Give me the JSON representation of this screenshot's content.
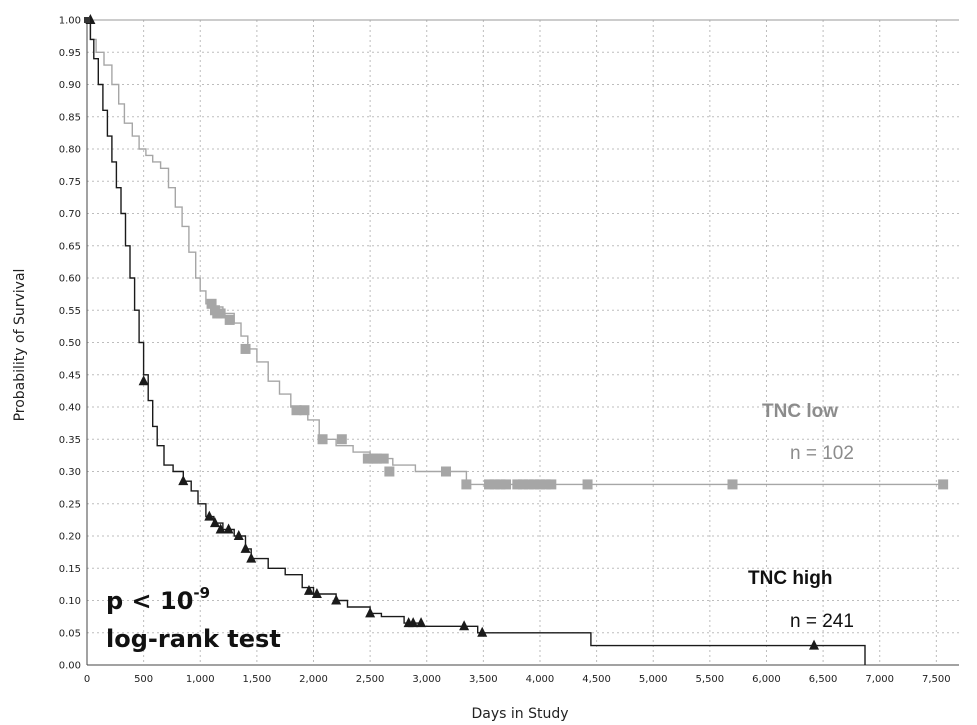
{
  "chart_data": {
    "type": "line",
    "subtype": "kaplan-meier step curve",
    "title": "",
    "xlabel": "Days in Study",
    "ylabel": "Probability of Survival",
    "xlim": [
      0,
      7700
    ],
    "ylim": [
      0,
      1.0
    ],
    "x_ticks": [
      "0",
      "500",
      "1,000",
      "1,500",
      "2,000",
      "2,500",
      "3,000",
      "3,500",
      "4,000",
      "4,500",
      "5,000",
      "5,500",
      "6,000",
      "6,500",
      "7,000",
      "7,500"
    ],
    "y_ticks": [
      "0.00",
      "0.05",
      "0.10",
      "0.15",
      "0.20",
      "0.25",
      "0.30",
      "0.35",
      "0.40",
      "0.45",
      "0.50",
      "0.55",
      "0.60",
      "0.65",
      "0.70",
      "0.75",
      "0.80",
      "0.85",
      "0.90",
      "0.95",
      "1.00"
    ],
    "grid": true,
    "series": [
      {
        "name": "TNC low",
        "color": "#a6a6a6",
        "marker": "square",
        "step_points": [
          [
            0,
            1.0
          ],
          [
            30,
            0.97
          ],
          [
            80,
            0.95
          ],
          [
            150,
            0.93
          ],
          [
            220,
            0.9
          ],
          [
            280,
            0.87
          ],
          [
            330,
            0.84
          ],
          [
            400,
            0.82
          ],
          [
            460,
            0.8
          ],
          [
            520,
            0.79
          ],
          [
            580,
            0.78
          ],
          [
            650,
            0.77
          ],
          [
            720,
            0.74
          ],
          [
            780,
            0.71
          ],
          [
            840,
            0.68
          ],
          [
            900,
            0.64
          ],
          [
            960,
            0.6
          ],
          [
            1000,
            0.58
          ],
          [
            1050,
            0.56
          ],
          [
            1100,
            0.555
          ],
          [
            1200,
            0.545
          ],
          [
            1300,
            0.53
          ],
          [
            1360,
            0.51
          ],
          [
            1420,
            0.49
          ],
          [
            1500,
            0.47
          ],
          [
            1600,
            0.44
          ],
          [
            1700,
            0.42
          ],
          [
            1800,
            0.4
          ],
          [
            1950,
            0.38
          ],
          [
            2050,
            0.35
          ],
          [
            2200,
            0.34
          ],
          [
            2350,
            0.33
          ],
          [
            2500,
            0.32
          ],
          [
            2700,
            0.31
          ],
          [
            2900,
            0.3
          ],
          [
            3350,
            0.28
          ],
          [
            7560,
            0.28
          ]
        ],
        "censor_marks": [
          [
            1100,
            0.56
          ],
          [
            1130,
            0.55
          ],
          [
            1150,
            0.545
          ],
          [
            1180,
            0.545
          ],
          [
            1260,
            0.535
          ],
          [
            1400,
            0.49
          ],
          [
            1850,
            0.395
          ],
          [
            1920,
            0.395
          ],
          [
            2080,
            0.35
          ],
          [
            2250,
            0.35
          ],
          [
            2480,
            0.32
          ],
          [
            2530,
            0.32
          ],
          [
            2560,
            0.32
          ],
          [
            2620,
            0.32
          ],
          [
            2670,
            0.3
          ],
          [
            3170,
            0.3
          ],
          [
            3350,
            0.28
          ],
          [
            3550,
            0.28
          ],
          [
            3600,
            0.28
          ],
          [
            3650,
            0.28
          ],
          [
            3700,
            0.28
          ],
          [
            3800,
            0.28
          ],
          [
            3850,
            0.28
          ],
          [
            3900,
            0.28
          ],
          [
            3950,
            0.28
          ],
          [
            4000,
            0.28
          ],
          [
            4050,
            0.28
          ],
          [
            4100,
            0.28
          ],
          [
            4420,
            0.28
          ],
          [
            5700,
            0.28
          ],
          [
            7560,
            0.28
          ]
        ]
      },
      {
        "name": "TNC high",
        "color": "#1a1a1a",
        "marker": "triangle",
        "step_points": [
          [
            0,
            1.0
          ],
          [
            30,
            0.97
          ],
          [
            60,
            0.94
          ],
          [
            100,
            0.9
          ],
          [
            140,
            0.86
          ],
          [
            180,
            0.82
          ],
          [
            220,
            0.78
          ],
          [
            260,
            0.74
          ],
          [
            300,
            0.7
          ],
          [
            340,
            0.65
          ],
          [
            380,
            0.6
          ],
          [
            420,
            0.55
          ],
          [
            460,
            0.5
          ],
          [
            500,
            0.45
          ],
          [
            540,
            0.41
          ],
          [
            580,
            0.37
          ],
          [
            620,
            0.34
          ],
          [
            680,
            0.31
          ],
          [
            760,
            0.3
          ],
          [
            850,
            0.285
          ],
          [
            920,
            0.27
          ],
          [
            980,
            0.25
          ],
          [
            1050,
            0.23
          ],
          [
            1120,
            0.22
          ],
          [
            1200,
            0.21
          ],
          [
            1300,
            0.2
          ],
          [
            1400,
            0.18
          ],
          [
            1450,
            0.165
          ],
          [
            1600,
            0.15
          ],
          [
            1750,
            0.14
          ],
          [
            1900,
            0.12
          ],
          [
            2000,
            0.11
          ],
          [
            2200,
            0.1
          ],
          [
            2300,
            0.09
          ],
          [
            2500,
            0.08
          ],
          [
            2600,
            0.075
          ],
          [
            2800,
            0.065
          ],
          [
            2950,
            0.06
          ],
          [
            3300,
            0.06
          ],
          [
            3450,
            0.05
          ],
          [
            4450,
            0.03
          ],
          [
            6870,
            0.03
          ],
          [
            6870,
            0.0
          ]
        ],
        "censor_marks": [
          [
            30,
            1.0
          ],
          [
            500,
            0.44
          ],
          [
            850,
            0.285
          ],
          [
            1080,
            0.23
          ],
          [
            1130,
            0.22
          ],
          [
            1180,
            0.21
          ],
          [
            1250,
            0.21
          ],
          [
            1340,
            0.2
          ],
          [
            1400,
            0.18
          ],
          [
            1450,
            0.165
          ],
          [
            1960,
            0.115
          ],
          [
            2030,
            0.11
          ],
          [
            2200,
            0.1
          ],
          [
            2500,
            0.08
          ],
          [
            2840,
            0.065
          ],
          [
            2880,
            0.065
          ],
          [
            2950,
            0.065
          ],
          [
            3330,
            0.06
          ],
          [
            3490,
            0.05
          ],
          [
            6420,
            0.03
          ]
        ]
      }
    ],
    "annotations": {
      "low_label": "TNC low",
      "low_n": "n = 102",
      "high_label": "TNC high",
      "high_n": "n = 241",
      "pvalue_base": "p < 10",
      "pvalue_exp": "-9",
      "test_name": "log-rank test"
    }
  }
}
